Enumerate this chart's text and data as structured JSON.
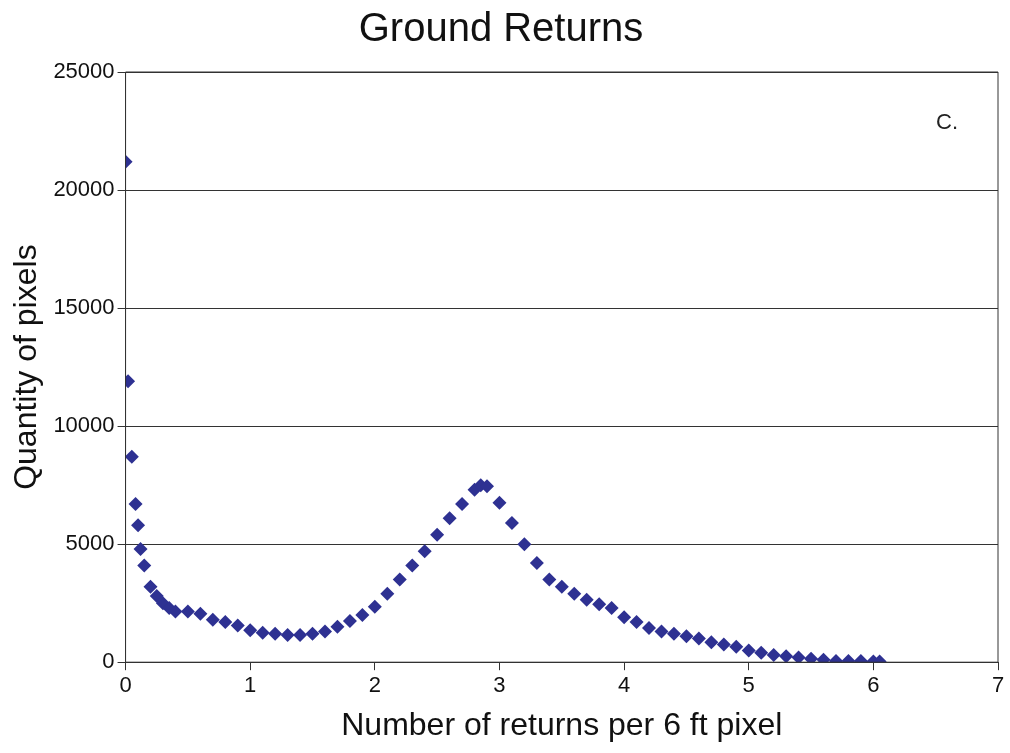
{
  "chart_data": {
    "type": "scatter",
    "title": "Ground Returns",
    "xlabel": "Number of returns per 6 ft pixel",
    "ylabel": "Quantity of pixels",
    "xlim": [
      0,
      7
    ],
    "xticks": [
      0,
      1,
      2,
      3,
      4,
      5,
      6,
      7
    ],
    "ylim": [
      0,
      25000
    ],
    "yticks": [
      0,
      5000,
      10000,
      15000,
      20000,
      25000
    ],
    "grid": "y",
    "legend": false,
    "marker": "diamond",
    "annotations": [
      "C."
    ],
    "series": [
      {
        "color": "#2e3192",
        "x": [
          0,
          0.02,
          0.05,
          0.08,
          0.1,
          0.12,
          0.15,
          0.2,
          0.25,
          0.3,
          0.35,
          0.4,
          0.5,
          0.6,
          0.7,
          0.8,
          0.9,
          1.0,
          1.1,
          1.2,
          1.3,
          1.4,
          1.5,
          1.6,
          1.7,
          1.8,
          1.9,
          2.0,
          2.1,
          2.2,
          2.3,
          2.4,
          2.5,
          2.6,
          2.7,
          2.8,
          2.85,
          2.9,
          3.0,
          3.1,
          3.2,
          3.3,
          3.4,
          3.5,
          3.6,
          3.7,
          3.8,
          3.9,
          4.0,
          4.1,
          4.2,
          4.3,
          4.4,
          4.5,
          4.6,
          4.7,
          4.8,
          4.9,
          5.0,
          5.1,
          5.2,
          5.3,
          5.4,
          5.5,
          5.6,
          5.7,
          5.8,
          5.9,
          6.0,
          6.05
        ],
        "values": [
          21200,
          11900,
          8700,
          6700,
          5800,
          4800,
          4100,
          3200,
          2800,
          2500,
          2300,
          2150,
          2150,
          2050,
          1800,
          1700,
          1550,
          1350,
          1250,
          1200,
          1150,
          1150,
          1200,
          1300,
          1500,
          1750,
          2000,
          2350,
          2900,
          3500,
          4100,
          4700,
          5400,
          6100,
          6700,
          7300,
          7500,
          7450,
          6750,
          5900,
          5000,
          4200,
          3500,
          3200,
          2900,
          2650,
          2450,
          2300,
          1900,
          1700,
          1450,
          1300,
          1200,
          1100,
          1000,
          850,
          750,
          650,
          500,
          400,
          300,
          250,
          200,
          150,
          100,
          50,
          50,
          50,
          30,
          30
        ]
      }
    ]
  }
}
